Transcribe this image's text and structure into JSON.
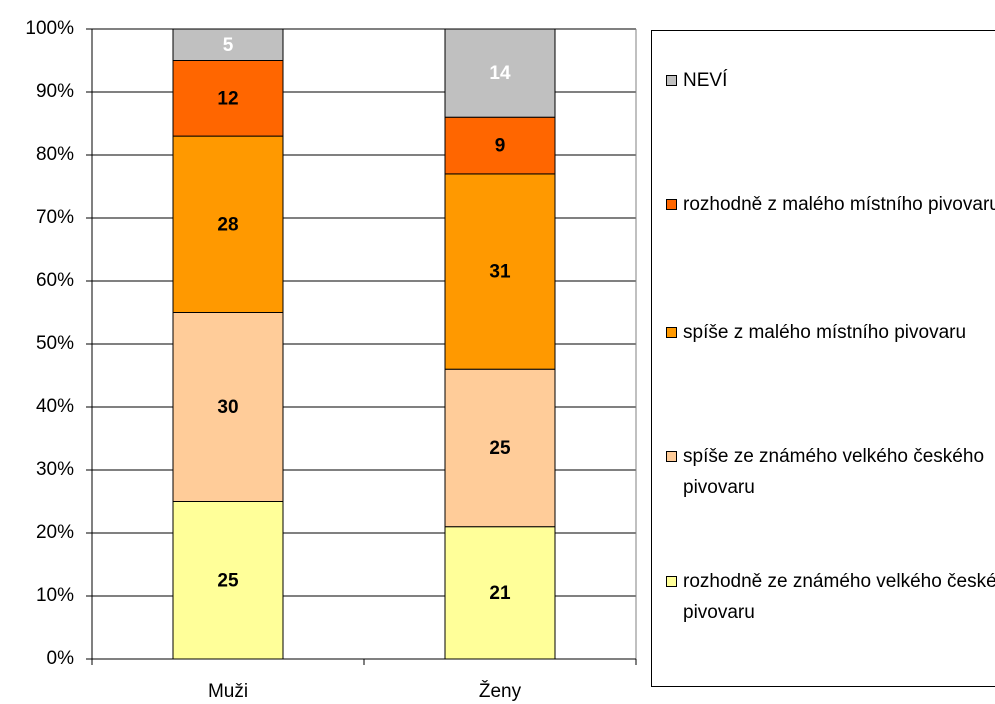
{
  "chart_data": {
    "type": "stacked_bar",
    "categories": [
      "Muži",
      "Ženy"
    ],
    "series": [
      {
        "name": "rozhodně ze známého velkého českého pivovaru",
        "color": "#ffff99",
        "label_color": "#000000",
        "values": [
          25,
          21
        ]
      },
      {
        "name": "spíše ze známého velkého českého pivovaru",
        "color": "#ffcc99",
        "label_color": "#000000",
        "values": [
          30,
          25
        ]
      },
      {
        "name": "spíše z malého místního pivovaru",
        "color": "#ff9900",
        "label_color": "#000000",
        "values": [
          28,
          31
        ]
      },
      {
        "name": "rozhodně z malého místního pivovaru",
        "color": "#ff6600",
        "label_color": "#000000",
        "values": [
          12,
          9
        ]
      },
      {
        "name": "NEVÍ",
        "color": "#c0c0c0",
        "label_color": "#ffffff",
        "values": [
          5,
          14
        ]
      }
    ],
    "ylim": [
      0,
      100
    ],
    "yticks": [
      {
        "value": 0,
        "label": "0%"
      },
      {
        "value": 10,
        "label": "10%"
      },
      {
        "value": 20,
        "label": "20%"
      },
      {
        "value": 30,
        "label": "30%"
      },
      {
        "value": 40,
        "label": "40%"
      },
      {
        "value": 50,
        "label": "50%"
      },
      {
        "value": 60,
        "label": "60%"
      },
      {
        "value": 70,
        "label": "70%"
      },
      {
        "value": 80,
        "label": "80%"
      },
      {
        "value": 90,
        "label": "90%"
      },
      {
        "value": 100,
        "label": "100%"
      }
    ],
    "grid": true,
    "legend": "right"
  }
}
